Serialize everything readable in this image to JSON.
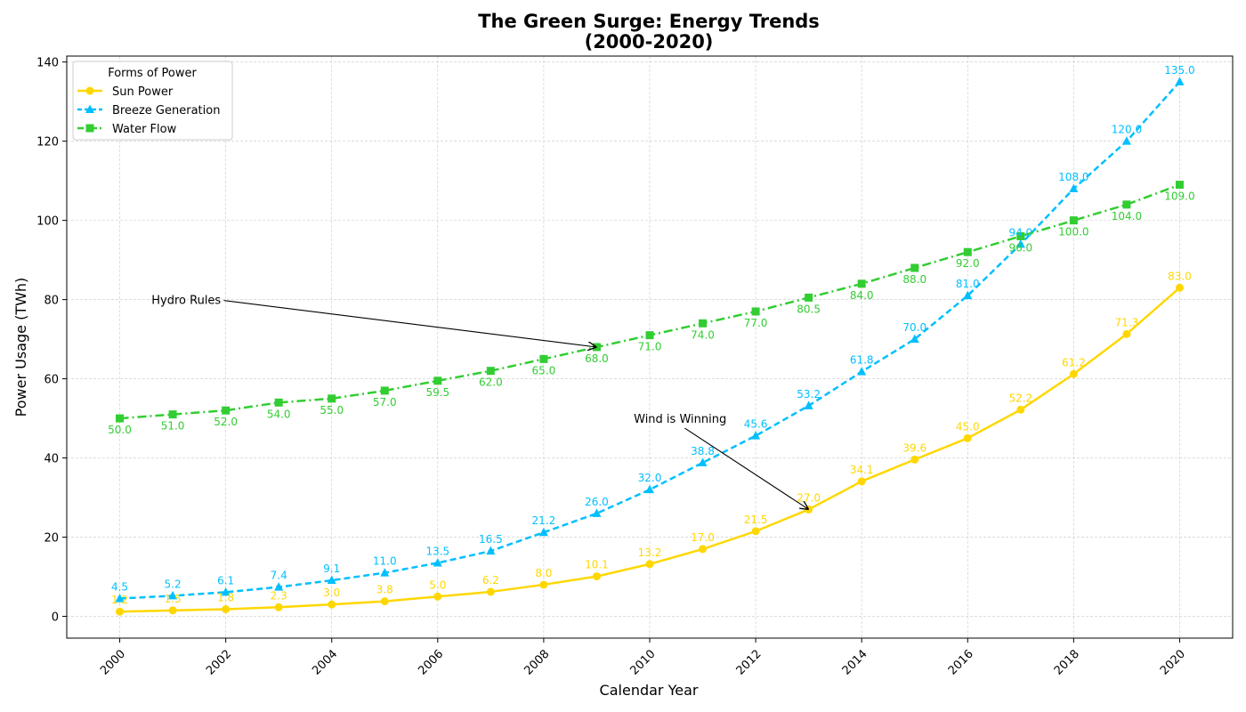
{
  "chart_data": {
    "type": "line",
    "title": "The Green Surge: Energy Trends",
    "subtitle": "(2000-2020)",
    "xlabel": "Calendar Year",
    "ylabel": "Power Usage (TWh)",
    "x": [
      2000,
      2001,
      2002,
      2003,
      2004,
      2005,
      2006,
      2007,
      2008,
      2009,
      2010,
      2011,
      2012,
      2013,
      2014,
      2015,
      2016,
      2017,
      2018,
      2019,
      2020
    ],
    "xlim": [
      1999,
      2021
    ],
    "ylim": [
      -5.5,
      141.5
    ],
    "x_ticks": [
      "2000",
      "2002",
      "2004",
      "2006",
      "2008",
      "2010",
      "2012",
      "2014",
      "2016",
      "2018",
      "2020"
    ],
    "y_ticks": [
      "0",
      "20",
      "40",
      "60",
      "80",
      "100",
      "120",
      "140"
    ],
    "grid": true,
    "legend": {
      "title": "Forms of Power",
      "placement": "top-left"
    },
    "series": [
      {
        "name": "Sun Power",
        "color": "#FFD700",
        "line_style": "solid",
        "marker": "circle",
        "label_position": "above",
        "values": [
          1.2,
          1.5,
          1.8,
          2.3,
          3.0,
          3.8,
          5.0,
          6.2,
          8.0,
          10.1,
          13.2,
          17.0,
          21.5,
          27.0,
          34.1,
          39.6,
          45.0,
          52.2,
          61.2,
          71.3,
          83.0
        ],
        "labels": [
          "1.2",
          "1.5",
          "1.8",
          "2.3",
          "3.0",
          "3.8",
          "5.0",
          "6.2",
          "8.0",
          "10.1",
          "13.2",
          "17.0",
          "21.5",
          "27.0",
          "34.1",
          "39.6",
          "45.0",
          "52.2",
          "61.2",
          "71.3",
          "83.0"
        ]
      },
      {
        "name": "Breeze Generation",
        "color": "#00BFFF",
        "line_style": "dashed",
        "marker": "triangle",
        "label_position": "above",
        "values": [
          4.5,
          5.2,
          6.1,
          7.4,
          9.1,
          11.0,
          13.5,
          16.5,
          21.2,
          26.0,
          32.0,
          38.8,
          45.6,
          53.2,
          61.8,
          70.0,
          81.0,
          94.0,
          108.0,
          120.0,
          135.0
        ],
        "labels": [
          "4.5",
          "5.2",
          "6.1",
          "7.4",
          "9.1",
          "11.0",
          "13.5",
          "16.5",
          "21.2",
          "26.0",
          "32.0",
          "38.8",
          "45.6",
          "53.2",
          "61.8",
          "70.0",
          "81.0",
          "94.0",
          "108.0",
          "120.0",
          "135.0"
        ]
      },
      {
        "name": "Water Flow",
        "color": "#32CD32",
        "line_style": "dashdot",
        "marker": "square",
        "label_position": "below",
        "values": [
          50.0,
          51.0,
          52.0,
          54.0,
          55.0,
          57.0,
          59.5,
          62.0,
          65.0,
          68.0,
          71.0,
          74.0,
          77.0,
          80.5,
          84.0,
          88.0,
          92.0,
          96.0,
          100.0,
          104.0,
          109.0
        ],
        "labels": [
          "50.0",
          "51.0",
          "52.0",
          "54.0",
          "55.0",
          "57.0",
          "59.5",
          "62.0",
          "65.0",
          "68.0",
          "71.0",
          "74.0",
          "77.0",
          "80.5",
          "84.0",
          "88.0",
          "92.0",
          "96.0",
          "100.0",
          "104.0",
          "109.0"
        ]
      }
    ],
    "annotations": [
      {
        "text": "Hydro Rules",
        "text_at": [
          2000.6,
          80
        ],
        "point_at": [
          2009,
          68
        ]
      },
      {
        "text": "Wind is Winning",
        "text_at": [
          2009.7,
          50
        ],
        "point_at": [
          2013,
          27
        ]
      }
    ]
  }
}
